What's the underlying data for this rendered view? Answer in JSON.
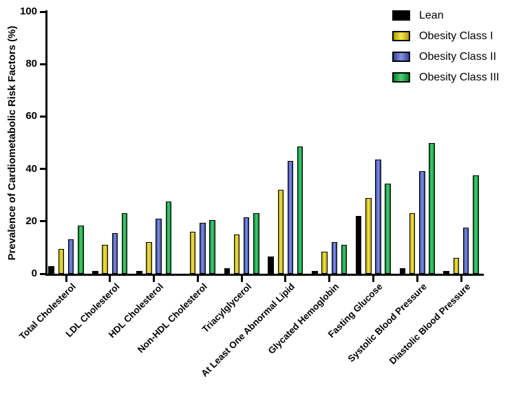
{
  "figure": {
    "background": "#ffffff",
    "axis_color": "#000000"
  },
  "chart_data": {
    "type": "bar",
    "title": "",
    "xlabel": "",
    "ylabel": "Prevalence of Cardiometabolic Risk Factors (%)",
    "ylim": [
      0,
      100
    ],
    "yticks": [
      0,
      20,
      40,
      60,
      80,
      100
    ],
    "grid": false,
    "legend_position": "top-right",
    "categories": [
      "Total Cholesterol",
      "LDL Cholesterol",
      "HDL Cholesterol",
      "Non-HDL Cholesterol",
      "Triacylglycerol",
      "At Least One Abnormal Lipid",
      "Glycated Hemoglobin",
      "Fasting Glucose",
      "Systolic Blood Pressure",
      "Diastolic Blood Pressure"
    ],
    "series": [
      {
        "name": "Lean",
        "color": "#000000",
        "values": [
          3,
          1,
          1,
          0,
          2,
          6.5,
          1,
          22,
          2,
          1
        ]
      },
      {
        "name": "Obesity Class I",
        "color": "#F2D900",
        "values": [
          9.5,
          11,
          12,
          16,
          15,
          32,
          8.5,
          29,
          23,
          6
        ]
      },
      {
        "name": "Obesity Class II",
        "color": "#4A5FD6",
        "values": [
          13,
          15.5,
          21,
          19.5,
          21.5,
          43,
          12,
          43.5,
          39,
          17.5
        ]
      },
      {
        "name": "Obesity Class III",
        "color": "#00B53C",
        "values": [
          18.5,
          23,
          27.5,
          20.5,
          23,
          48.5,
          11,
          34.5,
          50,
          37.5
        ]
      }
    ]
  }
}
